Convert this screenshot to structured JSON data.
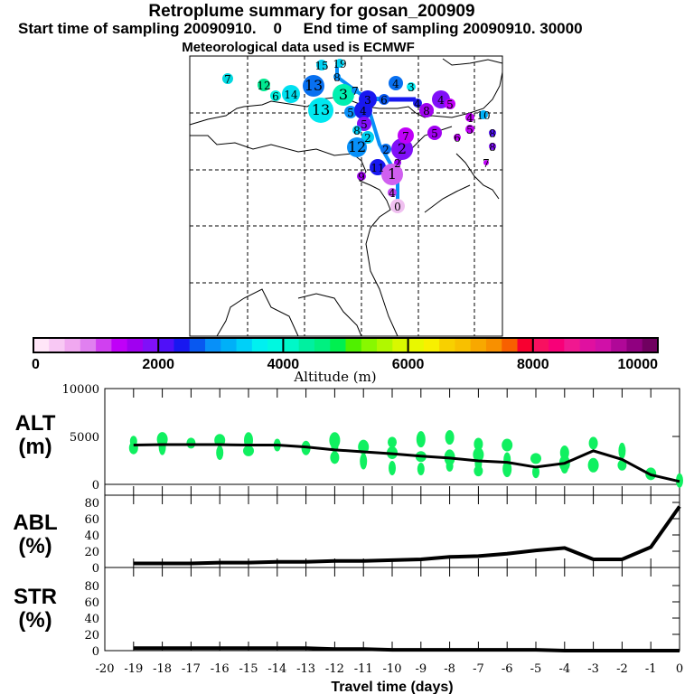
{
  "header": {
    "title": "Retroplume summary for gosan_200909",
    "subtitle": "Start time of sampling 20090910.    0     End time of sampling 20090910. 30000",
    "met_note": "Meteorological data used is ECMWF"
  },
  "map": {
    "markers": [
      {
        "label": "7",
        "color": "#00d8e0"
      },
      {
        "label": "12",
        "color": "#00e890"
      },
      {
        "label": "6",
        "color": "#00f0e0"
      },
      {
        "label": "13",
        "color": "#0870f0"
      },
      {
        "label": "14",
        "color": "#00e0f0"
      },
      {
        "label": "13",
        "color": "#00e8f0"
      },
      {
        "label": "3",
        "color": "#00f0b0"
      },
      {
        "label": "15",
        "color": "#00d0f0"
      },
      {
        "label": "19",
        "color": "#00d0f0"
      },
      {
        "label": "8",
        "color": "#0890f8"
      },
      {
        "label": "7",
        "color": "#0890f8"
      },
      {
        "label": "3",
        "color": "#1818f0"
      },
      {
        "label": "6",
        "color": "#0858f0"
      },
      {
        "label": "4",
        "color": "#0870f0"
      },
      {
        "label": "3",
        "color": "#00e8f0"
      },
      {
        "label": "4",
        "color": "#1818f0"
      },
      {
        "label": "4",
        "color": "#8010f8"
      },
      {
        "label": "5",
        "color": "#c000f8"
      },
      {
        "label": "8",
        "color": "#a000f0"
      },
      {
        "label": "5",
        "color": "#0890f8"
      },
      {
        "label": "4",
        "color": "#1818f0"
      },
      {
        "label": "5",
        "color": "#8010f8"
      },
      {
        "label": "8",
        "color": "#00c8f0"
      },
      {
        "label": "2",
        "color": "#00d0f0"
      },
      {
        "label": "12",
        "color": "#0890f8"
      },
      {
        "label": "2",
        "color": "#0870f0"
      },
      {
        "label": "2",
        "color": "#8010f8"
      },
      {
        "label": "7",
        "color": "#c000f8"
      },
      {
        "label": "5",
        "color": "#a000f0"
      },
      {
        "label": "6",
        "color": "#c000f8"
      },
      {
        "label": "4",
        "color": "#c000f8"
      },
      {
        "label": "5",
        "color": "#c000f8"
      },
      {
        "label": "10",
        "color": "#00b0f8"
      },
      {
        "label": "8",
        "color": "#5010f8"
      },
      {
        "label": "8",
        "color": "#8010f8"
      },
      {
        "label": "7",
        "color": "#c000f8"
      },
      {
        "label": "2",
        "color": "#a000f0"
      },
      {
        "label": "11",
        "color": "#1818f0"
      },
      {
        "label": "9",
        "color": "#a000f0"
      },
      {
        "label": "1",
        "color": "#d060f0"
      },
      {
        "label": "4",
        "color": "#c040f0"
      },
      {
        "label": "0",
        "color": "#f0c0f0"
      }
    ],
    "track_color": "#0890f8"
  },
  "colorbar": {
    "colors": [
      "#ffe6f8",
      "#f8c8f4",
      "#f0a8f0",
      "#e080f0",
      "#d040f0",
      "#c000f8",
      "#a000f0",
      "#8010f8",
      "#5010f8",
      "#1818f0",
      "#0858f0",
      "#0890f8",
      "#00b0f8",
      "#00d0f8",
      "#00f0f0",
      "#00f8e0",
      "#00f8c8",
      "#00f0a0",
      "#00f080",
      "#00f050",
      "#50f000",
      "#88f800",
      "#b0f800",
      "#d8f800",
      "#e8f800",
      "#f8f000",
      "#f8d000",
      "#f8c000",
      "#f8a800",
      "#f89000",
      "#f86000",
      "#f80030",
      "#f81060",
      "#f80078",
      "#f01890",
      "#e010a0",
      "#d010a8",
      "#b00898",
      "#900080",
      "#700060"
    ],
    "ticks": [
      "0",
      "2000",
      "4000",
      "6000",
      "8000",
      "10000"
    ],
    "label": "Altitude (m)"
  },
  "chart_data": [
    {
      "type": "line",
      "name": "ALT",
      "ylabel": "ALT\n(m)",
      "ylabel_lines": [
        "ALT",
        "(m)"
      ],
      "x": [
        -19,
        -18,
        -17,
        -16,
        -15,
        -14,
        -13,
        -12,
        -11,
        -10,
        -9,
        -8,
        -7,
        -6,
        -5,
        -4,
        -3,
        -2,
        -1,
        0
      ],
      "values": [
        4100,
        4150,
        4150,
        4150,
        4100,
        4100,
        3900,
        3600,
        3400,
        3200,
        2950,
        2750,
        2450,
        2300,
        1800,
        2200,
        3500,
        2600,
        1000,
        300
      ],
      "yticks": [
        "0",
        "5000",
        "10000"
      ],
      "ylim": [
        0,
        10000
      ],
      "scatter_color": "#10f060",
      "scatter": [
        [
          -19,
          4500
        ],
        [
          -19,
          3800
        ],
        [
          -18,
          4700
        ],
        [
          -18,
          3900
        ],
        [
          -17,
          4300
        ],
        [
          -16,
          4600
        ],
        [
          -16,
          3300
        ],
        [
          -15,
          4600
        ],
        [
          -15,
          3500
        ],
        [
          -14,
          4100
        ],
        [
          -13,
          3800
        ],
        [
          -12,
          4600
        ],
        [
          -12,
          3900
        ],
        [
          -12,
          2800
        ],
        [
          -11,
          3900
        ],
        [
          -11,
          2400
        ],
        [
          -10,
          4400
        ],
        [
          -10,
          3300
        ],
        [
          -10,
          1700
        ],
        [
          -9,
          4700
        ],
        [
          -9,
          2900
        ],
        [
          -9,
          1600
        ],
        [
          -8,
          4900
        ],
        [
          -8,
          2800
        ],
        [
          -8,
          1900
        ],
        [
          -7,
          4200
        ],
        [
          -7,
          3100
        ],
        [
          -7,
          2200
        ],
        [
          -7,
          1400
        ],
        [
          -6,
          4100
        ],
        [
          -6,
          2600
        ],
        [
          -6,
          1600
        ],
        [
          -5,
          2700
        ],
        [
          -5,
          1300
        ],
        [
          -4,
          3300
        ],
        [
          -4,
          2200
        ],
        [
          -4,
          1700
        ],
        [
          -3,
          4300
        ],
        [
          -3,
          2000
        ],
        [
          -2,
          3500
        ],
        [
          -2,
          2000
        ],
        [
          -1,
          1100
        ],
        [
          0,
          400
        ]
      ]
    },
    {
      "type": "line",
      "name": "ABL",
      "ylabel_lines": [
        "ABL",
        "(%)"
      ],
      "x": [
        -19,
        -18,
        -17,
        -16,
        -15,
        -14,
        -13,
        -12,
        -11,
        -10,
        -9,
        -8,
        -7,
        -6,
        -5,
        -4,
        -3,
        -2,
        -1,
        0
      ],
      "values": [
        5,
        5,
        5,
        6,
        6,
        7,
        7,
        8,
        8,
        9,
        10,
        13,
        14,
        17,
        21,
        24,
        10,
        10,
        25,
        75
      ],
      "yticks": [
        "0",
        "20",
        "40",
        "60",
        "80"
      ],
      "ylim": [
        0,
        100
      ]
    },
    {
      "type": "line",
      "name": "STR",
      "ylabel_lines": [
        "STR",
        "(%)"
      ],
      "x": [
        -19,
        -18,
        -17,
        -16,
        -15,
        -14,
        -13,
        -12,
        -11,
        -10,
        -9,
        -8,
        -7,
        -6,
        -5,
        -4,
        -3,
        -2,
        -1,
        0
      ],
      "values": [
        3,
        3,
        3,
        3,
        3,
        3,
        3,
        2,
        2,
        1,
        1,
        1,
        1,
        1,
        1,
        0,
        0,
        0,
        0,
        0
      ],
      "yticks": [
        "0",
        "20",
        "40",
        "60",
        "80"
      ],
      "ylim": [
        0,
        100
      ]
    }
  ],
  "xaxis": {
    "ticks": [
      "-20",
      "-19",
      "-18",
      "-17",
      "-16",
      "-15",
      "-14",
      "-13",
      "-12",
      "-11",
      "-10",
      "-9",
      "-8",
      "-7",
      "-6",
      "-5",
      "-4",
      "-3",
      "-2",
      "-1",
      "0"
    ],
    "label": "Travel time (days)",
    "xlim": [
      -20,
      0
    ]
  }
}
